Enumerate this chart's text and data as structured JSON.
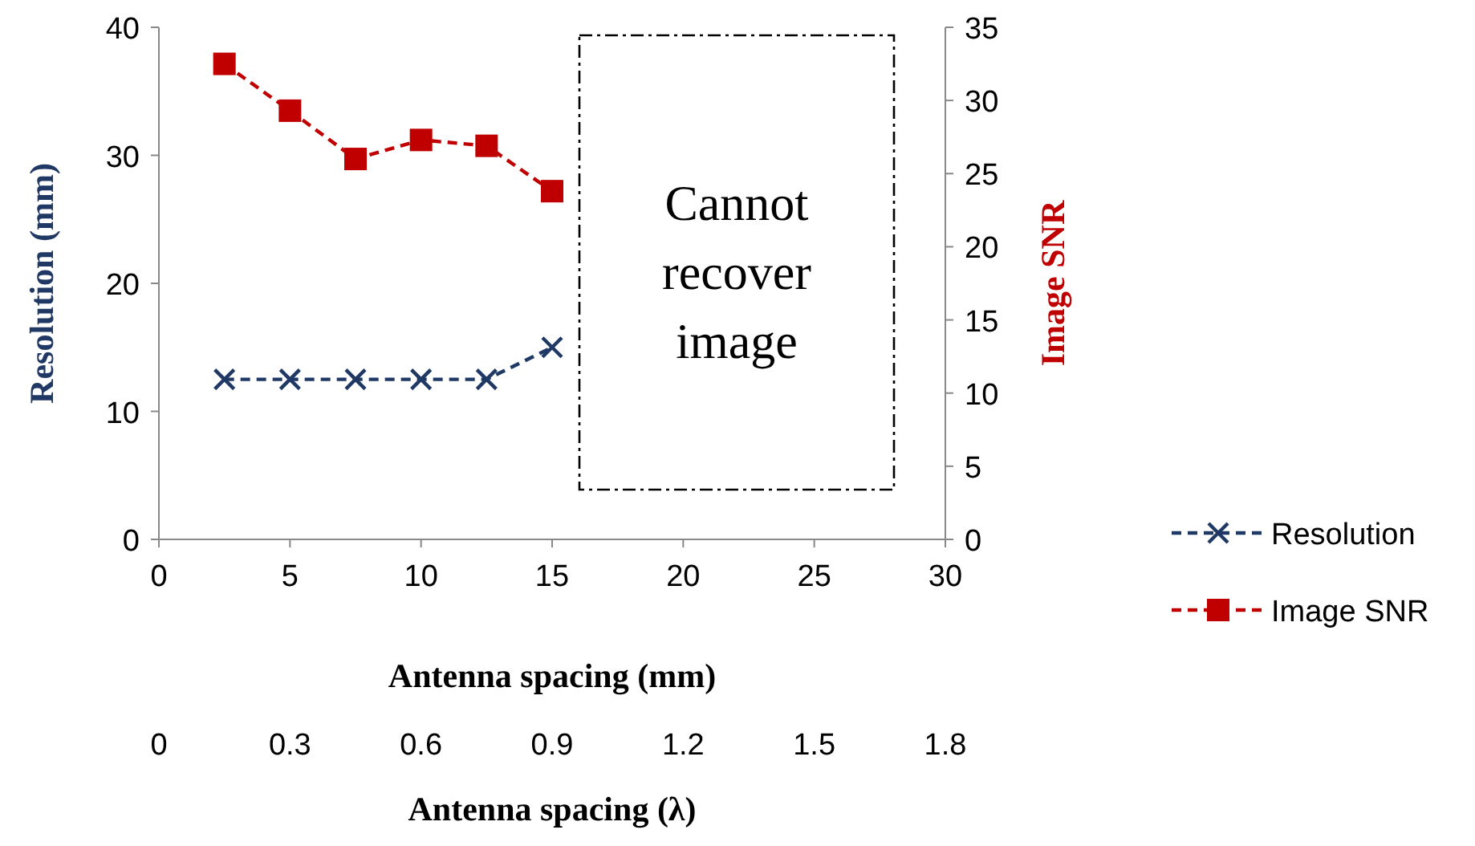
{
  "chart_data": {
    "type": "line",
    "xlabel": "Antenna spacing (mm)",
    "x2label": "Antenna spacing (λ)",
    "ylabel": "Resolution (mm)",
    "y2label": "Image SNR",
    "x": [
      2.5,
      5,
      7.5,
      10,
      12.5,
      15
    ],
    "series": [
      {
        "name": "Resolution",
        "color": "#1f3864",
        "values": [
          12.5,
          12.5,
          12.5,
          12.5,
          12.5,
          15
        ],
        "marker": "cross",
        "line_style": "dashed"
      },
      {
        "name": "Image SNR",
        "color": "#c00000",
        "values": [
          32.5,
          29.3,
          26,
          27.3,
          26.9,
          23.8
        ],
        "marker": "square",
        "line_style": "dashed",
        "axis": "y2"
      }
    ],
    "xlim": [
      0,
      30
    ],
    "xticks": [
      0,
      5,
      10,
      15,
      20,
      25,
      30
    ],
    "x2lim": [
      0,
      1.8
    ],
    "x2ticks": [
      0,
      0.3,
      0.6,
      0.9,
      1.2,
      1.5,
      1.8
    ],
    "ylim": [
      0,
      40
    ],
    "yticks": [
      0,
      10,
      20,
      30,
      40
    ],
    "y2lim": [
      0,
      35
    ],
    "y2ticks": [
      0,
      5,
      10,
      15,
      20,
      25,
      30,
      35
    ],
    "annotations": [
      "Cannot recover image"
    ],
    "legend": "right",
    "grid": false
  }
}
